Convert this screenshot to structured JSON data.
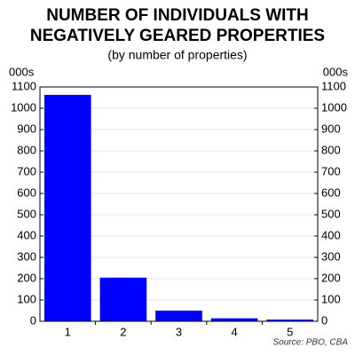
{
  "chart_data": {
    "type": "bar",
    "title": [
      "NUMBER OF INDIVIDUALS WITH",
      "NEGATIVELY GEARED PROPERTIES"
    ],
    "subtitle": "(by number of properties)",
    "ylabel": "000s",
    "y2label": "000s",
    "source": "Source: PBO, CBA",
    "categories": [
      "1",
      "2",
      "3",
      "4",
      "5"
    ],
    "values": [
      1063,
      205,
      50,
      14,
      8
    ],
    "color": "#0000ff",
    "ylim": [
      0,
      1100
    ],
    "yticks": [
      0,
      100,
      200,
      300,
      400,
      500,
      600,
      700,
      800,
      900,
      1000,
      1100
    ],
    "y2lim": [
      0,
      1100
    ],
    "y2ticks": [
      0,
      100,
      200,
      300,
      400,
      500,
      600,
      700,
      800,
      900,
      1000,
      1100
    ],
    "grid": true
  }
}
